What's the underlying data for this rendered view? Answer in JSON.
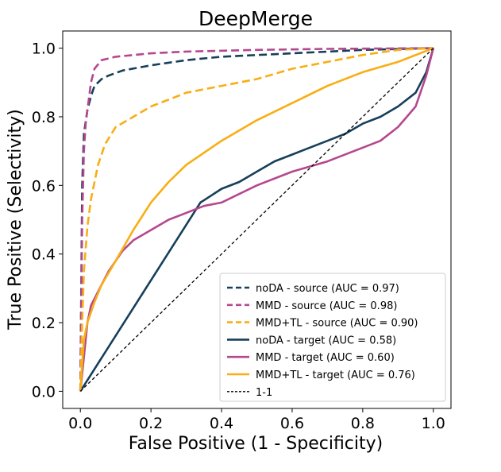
{
  "chart_data": {
    "type": "line",
    "title": "DeepMerge",
    "xlabel": "False Positive (1 - Specificity)",
    "ylabel": "True Positive (Selectivity)",
    "xlim": [
      -0.05,
      1.05
    ],
    "ylim": [
      -0.05,
      1.05
    ],
    "xticks": [
      "0.0",
      "0.2",
      "0.4",
      "0.6",
      "0.8",
      "1.0"
    ],
    "yticks": [
      "0.0",
      "0.2",
      "0.4",
      "0.6",
      "0.8",
      "1.0"
    ],
    "grid": false,
    "legend_position": "lower-right",
    "colors": {
      "noda": "#163f5a",
      "mmd": "#b5478f",
      "mmdtl": "#f8ae14",
      "diag": "#000000"
    },
    "series": [
      {
        "name": "noDA - source (AUC = 0.97)",
        "color": "noda",
        "dash": "dashed",
        "x": [
          0,
          0.005,
          0.01,
          0.02,
          0.03,
          0.04,
          0.06,
          0.08,
          0.12,
          0.2,
          0.3,
          0.4,
          0.6,
          0.8,
          1.0
        ],
        "y": [
          0,
          0.6,
          0.75,
          0.82,
          0.86,
          0.89,
          0.91,
          0.92,
          0.935,
          0.95,
          0.965,
          0.975,
          0.985,
          0.995,
          1.0
        ]
      },
      {
        "name": "MMD - source (AUC = 0.98)",
        "color": "mmd",
        "dash": "dashed",
        "x": [
          0,
          0.005,
          0.01,
          0.015,
          0.02,
          0.03,
          0.04,
          0.06,
          0.1,
          0.2,
          0.3,
          0.5,
          0.7,
          1.0
        ],
        "y": [
          0,
          0.5,
          0.7,
          0.78,
          0.82,
          0.9,
          0.94,
          0.965,
          0.975,
          0.985,
          0.99,
          0.995,
          0.998,
          1.0
        ]
      },
      {
        "name": "MMD+TL - source (AUC = 0.90)",
        "color": "mmdtl",
        "dash": "dashed",
        "x": [
          0,
          0.005,
          0.01,
          0.02,
          0.03,
          0.05,
          0.07,
          0.1,
          0.15,
          0.2,
          0.25,
          0.3,
          0.4,
          0.5,
          0.6,
          0.7,
          0.8,
          0.9,
          1.0
        ],
        "y": [
          0,
          0.2,
          0.35,
          0.48,
          0.56,
          0.66,
          0.72,
          0.77,
          0.8,
          0.83,
          0.85,
          0.87,
          0.89,
          0.91,
          0.94,
          0.96,
          0.98,
          0.995,
          1.0
        ]
      },
      {
        "name": "noDA - target (AUC = 0.58)",
        "color": "noda",
        "dash": "solid",
        "x": [
          0,
          0.34,
          0.37,
          0.4,
          0.45,
          0.5,
          0.55,
          0.6,
          0.65,
          0.7,
          0.75,
          0.8,
          0.85,
          0.9,
          0.95,
          0.98,
          1.0
        ],
        "y": [
          0,
          0.55,
          0.57,
          0.59,
          0.61,
          0.64,
          0.67,
          0.69,
          0.71,
          0.73,
          0.75,
          0.78,
          0.8,
          0.83,
          0.87,
          0.93,
          1.0
        ]
      },
      {
        "name": "MMD - target (AUC = 0.60)",
        "color": "mmd",
        "dash": "solid",
        "x": [
          0,
          0.01,
          0.015,
          0.02,
          0.03,
          0.04,
          0.06,
          0.08,
          0.1,
          0.12,
          0.15,
          0.2,
          0.25,
          0.3,
          0.35,
          0.4,
          0.5,
          0.6,
          0.7,
          0.8,
          0.85,
          0.9,
          0.95,
          0.98,
          1.0
        ],
        "y": [
          0,
          0.1,
          0.15,
          0.2,
          0.25,
          0.27,
          0.31,
          0.35,
          0.38,
          0.41,
          0.44,
          0.47,
          0.5,
          0.52,
          0.54,
          0.55,
          0.6,
          0.64,
          0.67,
          0.71,
          0.73,
          0.77,
          0.83,
          0.92,
          1.0
        ]
      },
      {
        "name": "MMD+TL - target (AUC = 0.76)",
        "color": "mmdtl",
        "dash": "solid",
        "x": [
          0,
          0.005,
          0.01,
          0.02,
          0.04,
          0.06,
          0.1,
          0.15,
          0.2,
          0.25,
          0.3,
          0.4,
          0.5,
          0.6,
          0.7,
          0.8,
          0.9,
          1.0
        ],
        "y": [
          0,
          0.08,
          0.15,
          0.2,
          0.26,
          0.31,
          0.38,
          0.47,
          0.55,
          0.61,
          0.66,
          0.73,
          0.79,
          0.84,
          0.89,
          0.93,
          0.96,
          1.0
        ]
      },
      {
        "name": "1-1",
        "color": "diag",
        "dash": "finedash",
        "x": [
          0,
          1
        ],
        "y": [
          0,
          1
        ]
      }
    ]
  }
}
